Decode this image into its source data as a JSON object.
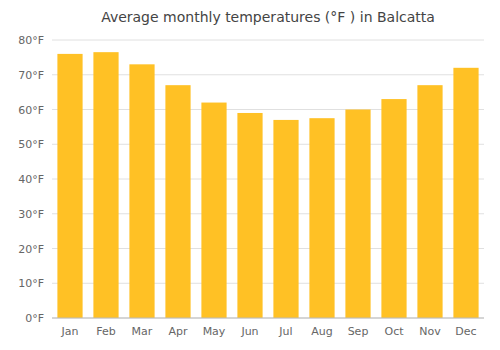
{
  "chart_data": {
    "type": "bar",
    "title": "Average monthly temperatures (°F ) in Balcatta",
    "categories": [
      "Jan",
      "Feb",
      "Mar",
      "Apr",
      "May",
      "Jun",
      "Jul",
      "Aug",
      "Sep",
      "Oct",
      "Nov",
      "Dec"
    ],
    "values": [
      76,
      76.5,
      73,
      67,
      62,
      59,
      57,
      57.5,
      60,
      63,
      67,
      72
    ],
    "color": "#FFC125",
    "ylim": [
      0,
      80
    ],
    "yticks": [
      {
        "value": 0,
        "label": "0°F"
      },
      {
        "value": 10,
        "label": "10°F"
      },
      {
        "value": 20,
        "label": "20°F"
      },
      {
        "value": 30,
        "label": "30°F"
      },
      {
        "value": 40,
        "label": "40°F"
      },
      {
        "value": 50,
        "label": "50°F"
      },
      {
        "value": 60,
        "label": "60°F"
      },
      {
        "value": 70,
        "label": "70°F"
      },
      {
        "value": 80,
        "label": "80°F"
      }
    ],
    "grid": true
  }
}
